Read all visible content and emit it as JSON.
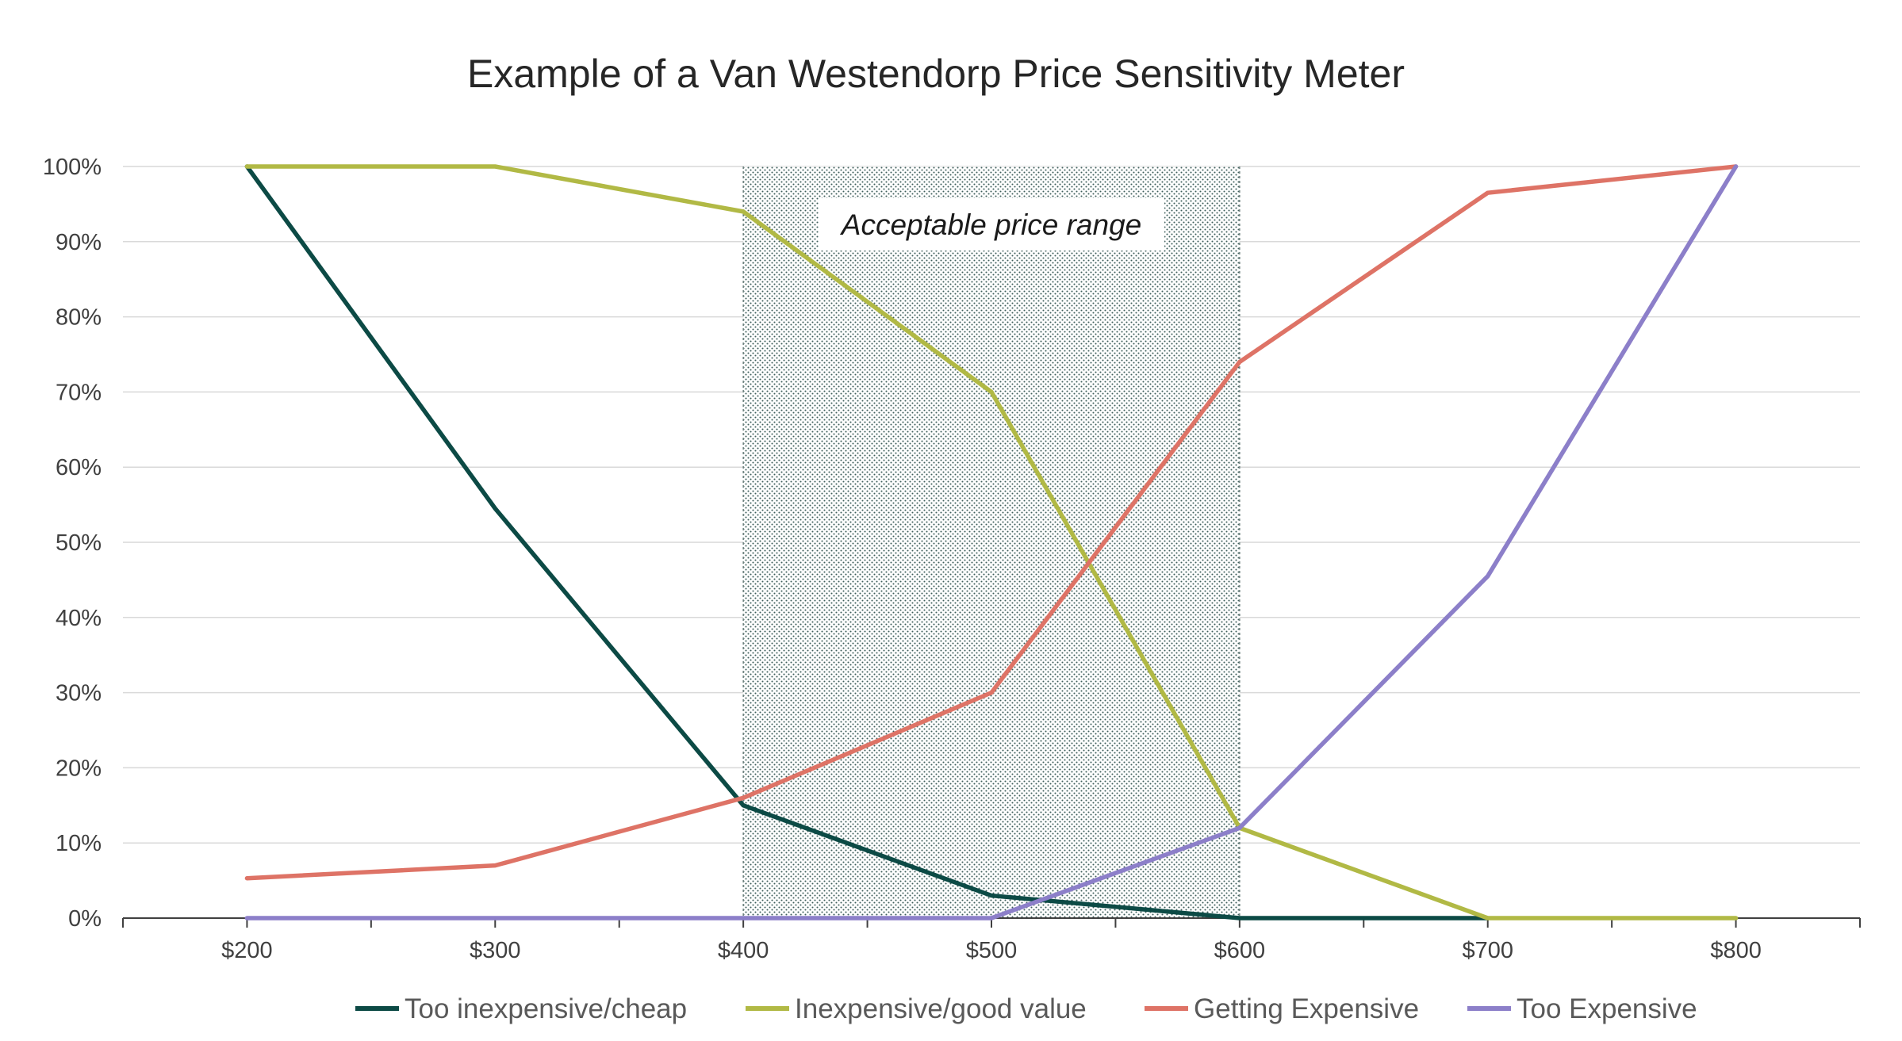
{
  "chart_data": {
    "type": "line",
    "title": "Example of a Van Westendorp Price Sensitivity Meter",
    "x": [
      "$200",
      "$300",
      "$400",
      "$500",
      "$600",
      "$700",
      "$800"
    ],
    "x_values": [
      200,
      300,
      400,
      500,
      600,
      700,
      800
    ],
    "xlim": [
      150,
      850
    ],
    "ylim": [
      0,
      100
    ],
    "y_ticks": [
      "0%",
      "10%",
      "20%",
      "30%",
      "40%",
      "50%",
      "60%",
      "70%",
      "80%",
      "90%",
      "100%"
    ],
    "y_tick_values": [
      0,
      10,
      20,
      30,
      40,
      50,
      60,
      70,
      80,
      90,
      100
    ],
    "grid": true,
    "legend_position": "bottom",
    "series": [
      {
        "name": "Too inexpensive/cheap",
        "color": "#0c4a45",
        "values": [
          100,
          54.5,
          15,
          3,
          0,
          0,
          null
        ]
      },
      {
        "name": "Inexpensive/good value",
        "color": "#b1b945",
        "values": [
          100,
          100,
          94,
          70,
          12,
          0,
          0
        ]
      },
      {
        "name": "Getting Expensive",
        "color": "#de7366",
        "values": [
          5.3,
          7,
          16,
          30,
          74,
          96.5,
          100
        ]
      },
      {
        "name": "Too Expensive",
        "color": "#8c7fc9",
        "values": [
          0,
          0,
          0,
          0,
          12,
          45.5,
          100
        ]
      }
    ],
    "shaded_region": {
      "x_start": 400,
      "x_end": 600,
      "label": "Acceptable price range"
    }
  }
}
